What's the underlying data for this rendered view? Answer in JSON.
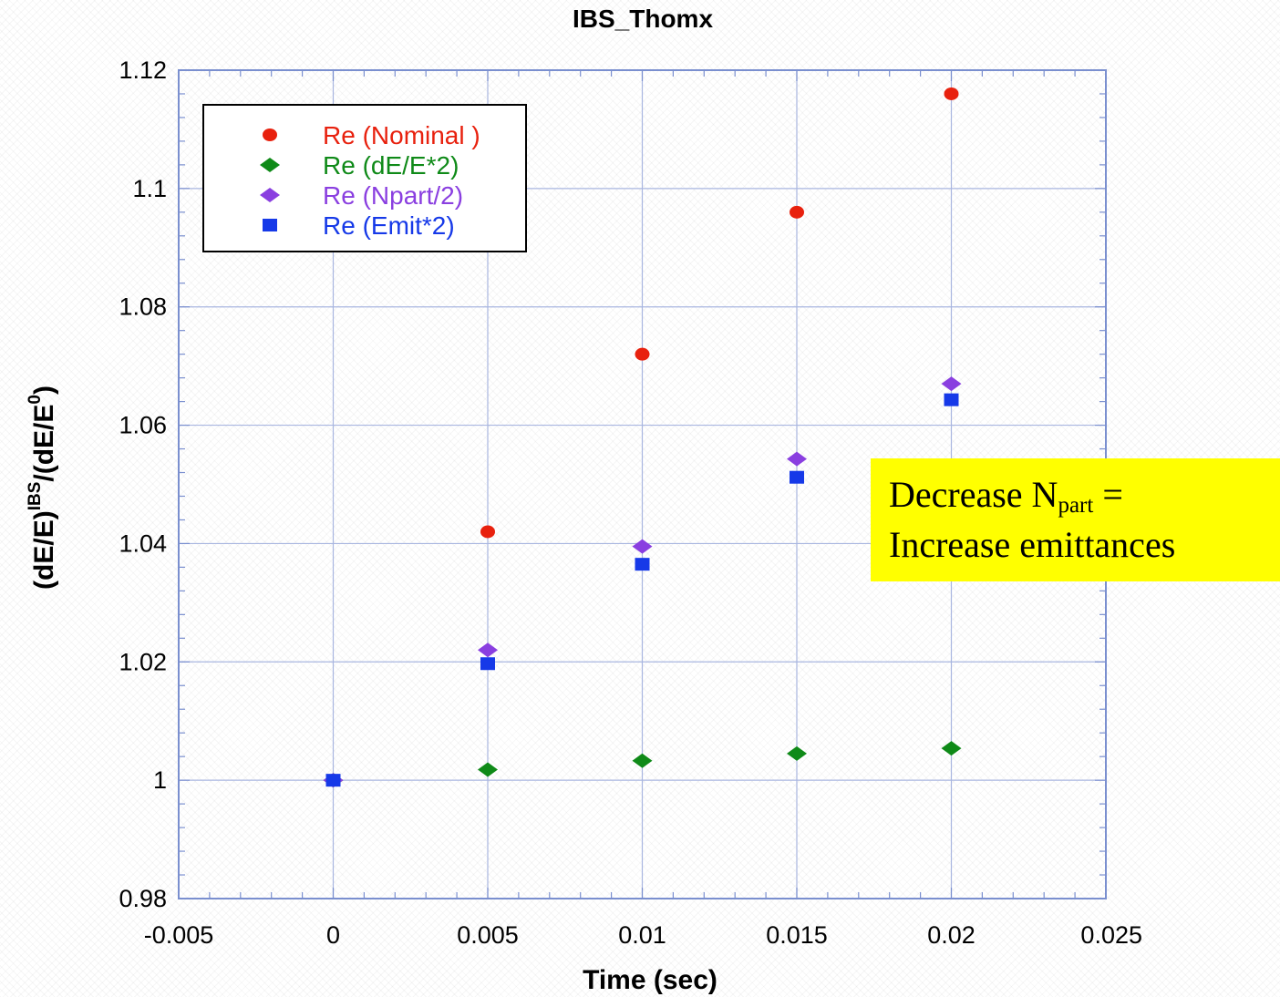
{
  "chart_data": {
    "type": "scatter",
    "title": "IBS_Thomx",
    "xlabel": "Time (sec)",
    "ylabel": "(dE/E)IBS/(dE/E0)",
    "ylabel_parts": {
      "base": "(dE/E)",
      "sup": "IBS",
      "mid": "/(dE/E",
      "sup2": "0",
      "end": ")"
    },
    "xlim": [
      -0.005,
      0.025
    ],
    "ylim": [
      0.98,
      1.12
    ],
    "xticks": [
      -0.005,
      0,
      0.005,
      0.01,
      0.015,
      0.02,
      0.025
    ],
    "xtick_labels": [
      "-0.005",
      "0",
      "0.005",
      "0.01",
      "0.015",
      "0.02",
      "0.025"
    ],
    "yticks": [
      0.98,
      1,
      1.02,
      1.04,
      1.06,
      1.08,
      1.1,
      1.12
    ],
    "ytick_labels": [
      "0.98",
      "1",
      "1.02",
      "1.04",
      "1.06",
      "1.08",
      "1.1",
      "1.12"
    ],
    "grid": true,
    "legend_position": "top-left",
    "series": [
      {
        "name": "Re (Nominal )",
        "marker": "circle",
        "color": "#e8210e",
        "x": [
          0,
          0.005,
          0.01,
          0.015,
          0.02
        ],
        "y": [
          1.0,
          1.042,
          1.072,
          1.096,
          1.116
        ]
      },
      {
        "name": "Re (dE/E*2)",
        "marker": "diamond",
        "color": "#0f8a18",
        "x": [
          0,
          0.005,
          0.01,
          0.015,
          0.02
        ],
        "y": [
          1.0,
          1.0018,
          1.0033,
          1.0045,
          1.0054
        ]
      },
      {
        "name": "Re (Npart/2)",
        "marker": "diamond",
        "color": "#8a3fe0",
        "x": [
          0,
          0.005,
          0.01,
          0.015,
          0.02
        ],
        "y": [
          1.0,
          1.022,
          1.0395,
          1.0543,
          1.067
        ]
      },
      {
        "name": "Re (Emit*2)",
        "marker": "square",
        "color": "#1639e8",
        "x": [
          0,
          0.005,
          0.01,
          0.015,
          0.02
        ],
        "y": [
          1.0,
          1.0197,
          1.0365,
          1.0512,
          1.0643
        ]
      }
    ]
  },
  "annotation": {
    "line1_text": "Decrease N",
    "line1_sub": "part",
    "line1_suffix": " =",
    "line2": "Increase emittances"
  }
}
